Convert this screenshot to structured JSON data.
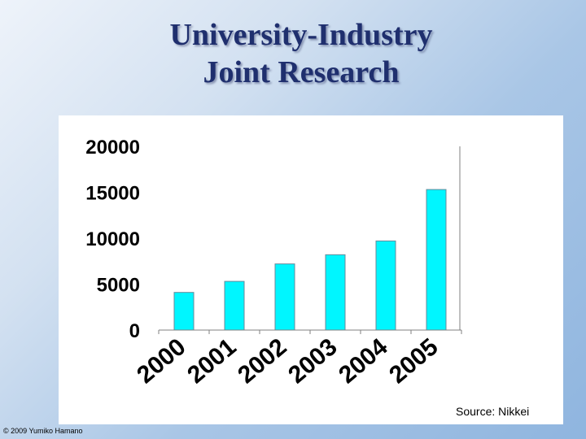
{
  "slide": {
    "title_line1": "University-Industry",
    "title_line2": "Joint Research",
    "source": "Source: Nikkei",
    "copyright": "© 2009 Yumiko Hamano"
  },
  "colors": {
    "bar_fill": "#00f6ff",
    "bar_stroke": "#6a8a9a",
    "title": "#1f2f6e"
  },
  "chart_data": {
    "type": "bar",
    "title": "",
    "xlabel": "",
    "ylabel": "",
    "categories": [
      "2000",
      "2001",
      "2002",
      "2003",
      "2004",
      "2005"
    ],
    "values": [
      4100,
      5300,
      7200,
      8200,
      9700,
      15300
    ],
    "ylim": [
      0,
      20000
    ],
    "yticks": [
      "0",
      "5000",
      "10000",
      "15000",
      "20000"
    ],
    "grid": false,
    "legend": "none"
  }
}
